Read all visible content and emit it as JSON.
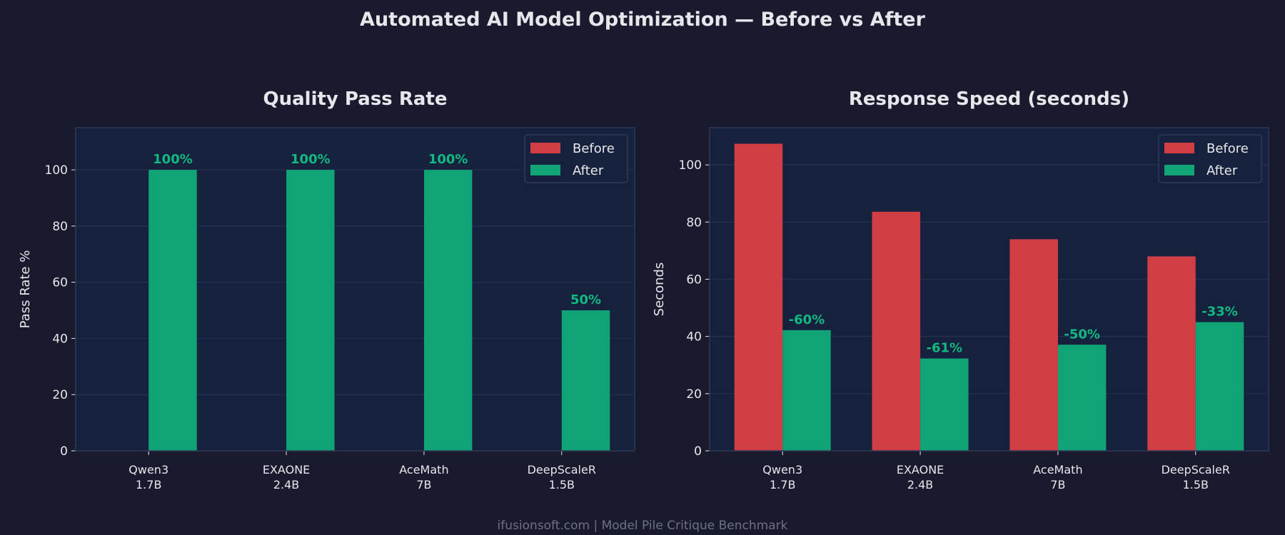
{
  "suptitle": "Automated AI Model Optimization — Before vs After",
  "footer": "ifusionsoft.com  |  Model Pile Critique Benchmark",
  "colors": {
    "background": "#1a1a2e",
    "axes": "#16213e",
    "before": "#d13f45",
    "after": "#10a376",
    "label": "#10b981",
    "spine": "#2e3a55"
  },
  "chart_data": [
    {
      "type": "bar",
      "title": "Quality Pass Rate",
      "xlabel": "",
      "ylabel": "Pass Rate %",
      "ylim": [
        0,
        115
      ],
      "yticks": [
        "0",
        "20",
        "40",
        "60",
        "80",
        "100"
      ],
      "categories": [
        [
          "Qwen3",
          "1.7B"
        ],
        [
          "EXAONE",
          "2.4B"
        ],
        [
          "AceMath",
          "7B"
        ],
        [
          "DeepScaleR",
          "1.5B"
        ]
      ],
      "series": [
        {
          "name": "Before",
          "values": [
            0,
            0,
            0,
            0
          ]
        },
        {
          "name": "After",
          "values": [
            100,
            100,
            100,
            50
          ]
        }
      ],
      "data_labels": [
        "100%",
        "100%",
        "100%",
        "50%"
      ],
      "legend": "top-right",
      "grid": true
    },
    {
      "type": "bar",
      "title": "Response Speed (seconds)",
      "xlabel": "",
      "ylabel": "Seconds",
      "ylim": [
        0,
        113
      ],
      "yticks": [
        "0",
        "20",
        "40",
        "60",
        "80",
        "100"
      ],
      "categories": [
        [
          "Qwen3",
          "1.7B"
        ],
        [
          "EXAONE",
          "2.4B"
        ],
        [
          "AceMath",
          "7B"
        ],
        [
          "DeepScaleR",
          "1.5B"
        ]
      ],
      "series": [
        {
          "name": "Before",
          "values": [
            107.4,
            83.6,
            74.0,
            68.0
          ]
        },
        {
          "name": "After",
          "values": [
            42.2,
            32.3,
            37.1,
            45.0
          ]
        }
      ],
      "data_labels": [
        "-60%",
        "-61%",
        "-50%",
        "-33%"
      ],
      "legend": "top-right",
      "grid": true
    }
  ]
}
